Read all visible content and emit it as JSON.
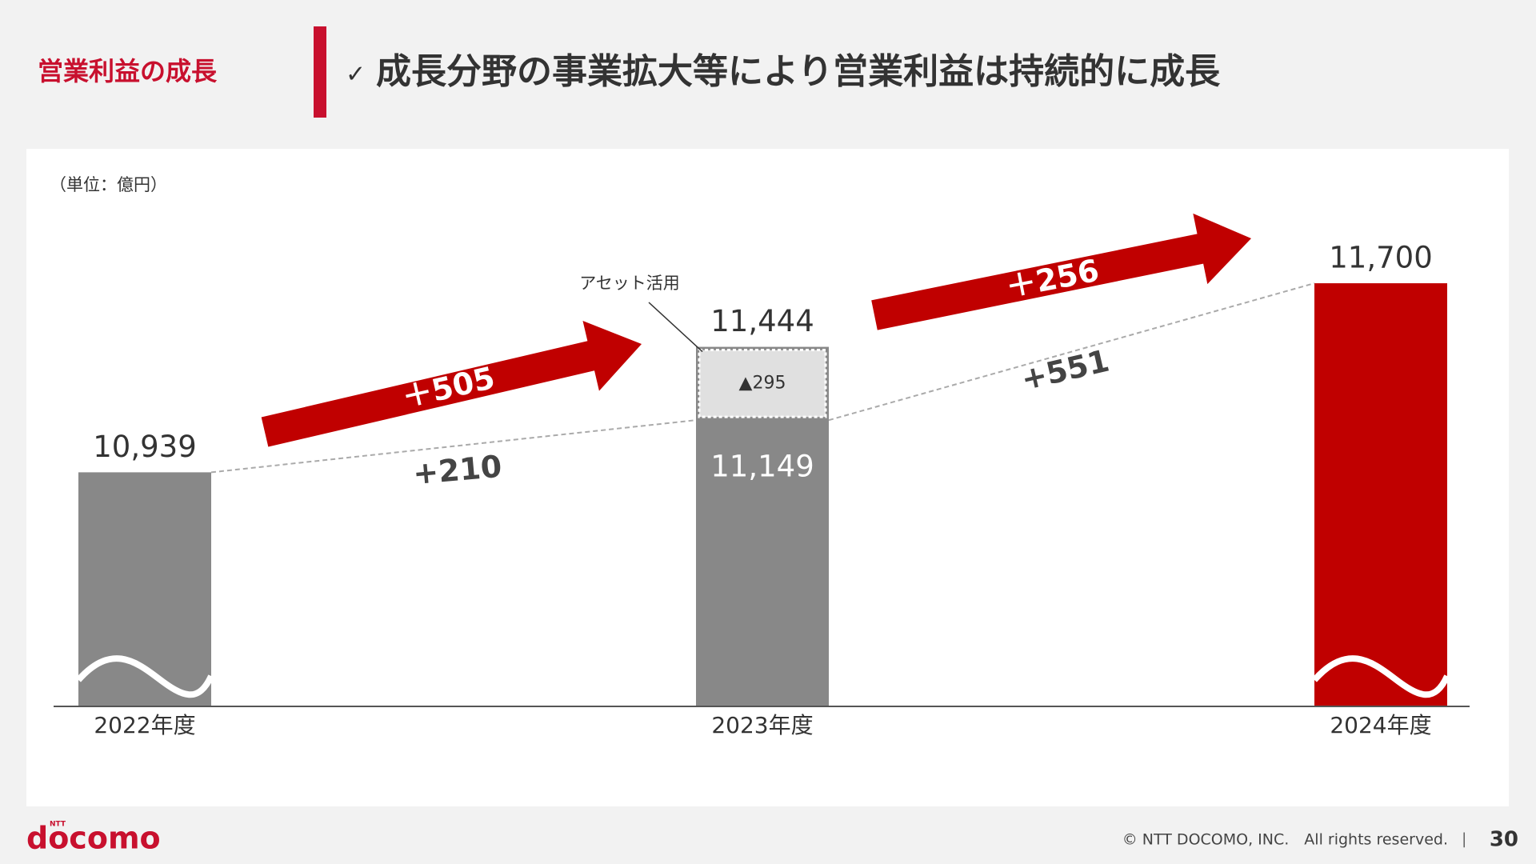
{
  "header": {
    "section": "営業利益の成長",
    "check": "✓",
    "title": "成長分野の事業拡大等により営業利益は持続的に成長"
  },
  "chart_data": {
    "type": "bar",
    "unit": "（単位：億円）",
    "categories": [
      "2022年度",
      "2023年度",
      "2024年度"
    ],
    "values": [
      10939,
      11444,
      11700
    ],
    "value_labels": [
      "10,939",
      "11,444",
      "11,700"
    ],
    "colors": [
      "#888888",
      "#888888",
      "#c00000"
    ],
    "ylim": [
      10000,
      11800
    ],
    "asset_use": {
      "label": "アセット活用",
      "base": 11149,
      "base_label": "11,149",
      "value": 295,
      "value_label": "▲295"
    },
    "changes": [
      {
        "value": 505,
        "label": "＋505"
      },
      {
        "value": 210,
        "label": "+210"
      },
      {
        "value": 256,
        "label": "＋256"
      },
      {
        "value": 551,
        "label": "+551"
      }
    ]
  },
  "footer": {
    "logo_small": "NTT",
    "logo": "docomo",
    "copyright": "© NTT DOCOMO, INC.　All rights reserved.",
    "separator": "|",
    "page": "30"
  }
}
